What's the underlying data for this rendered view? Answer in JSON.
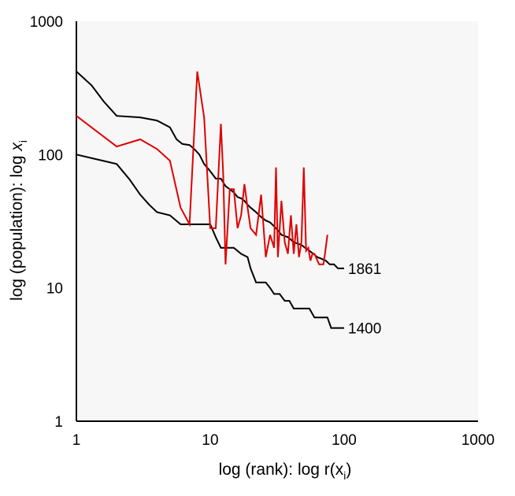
{
  "chart_data": {
    "type": "line",
    "xscale": "log",
    "yscale": "log",
    "xlim": [
      1,
      1000
    ],
    "ylim": [
      1,
      1000
    ],
    "xticks": [
      "1",
      "10",
      "100",
      "1000"
    ],
    "yticks": [
      "1",
      "10",
      "100",
      "1000"
    ],
    "xlabel": "log (rank): log r(x",
    "xlabel_sub": "i",
    "xlabel_close": ")",
    "ylabel": "log (population): log ",
    "ylabel_var": "x",
    "ylabel_sub": "i",
    "grid": false,
    "colors": {
      "plot_bg": "#f7f7f7",
      "axis": "#000000",
      "series_1400": "#000000",
      "series_1861": "#000000",
      "series_mid": "#e00000"
    },
    "series": [
      {
        "name": "1861",
        "color": "#000000",
        "x": [
          1,
          1.3,
          1.6,
          2,
          3,
          4,
          5,
          5.6,
          6.2,
          7,
          7.6,
          8.3,
          9,
          10,
          11,
          12,
          13,
          14,
          15,
          16,
          17,
          18,
          19,
          20,
          22,
          24,
          26,
          28,
          30,
          32,
          34,
          36,
          38,
          40,
          42,
          45,
          48,
          51,
          55,
          59,
          63,
          68,
          73,
          78,
          84,
          90,
          100
        ],
        "y": [
          420,
          330,
          250,
          195,
          190,
          180,
          160,
          130,
          120,
          118,
          110,
          100,
          85,
          75,
          66,
          66,
          58,
          55,
          52,
          48,
          47,
          45,
          42,
          40,
          37,
          34,
          32,
          31,
          29,
          27,
          25,
          24.5,
          24,
          23,
          22,
          21.5,
          21,
          20,
          19,
          18,
          17,
          16.5,
          16,
          15,
          15,
          14,
          14
        ]
      },
      {
        "name": "1400",
        "color": "#000000",
        "x": [
          1,
          2,
          2.5,
          3,
          3.5,
          4,
          5,
          6,
          7,
          8,
          9,
          10,
          11,
          12,
          13,
          15,
          17,
          19,
          20,
          22,
          24,
          26,
          28,
          30,
          33,
          36,
          39,
          42,
          45,
          50,
          55,
          60,
          65,
          70,
          75,
          80,
          90,
          100
        ],
        "y": [
          100,
          85,
          65,
          50,
          42,
          37,
          35,
          30,
          30,
          30,
          30,
          30,
          24,
          20,
          20,
          20,
          18,
          17,
          14,
          11,
          11,
          11,
          10,
          9,
          9,
          8,
          8,
          7,
          7,
          7,
          7,
          6,
          6,
          6,
          6,
          5,
          5,
          5
        ]
      },
      {
        "name": "",
        "color": "#e00000",
        "x": [
          1,
          2,
          3,
          4,
          5,
          6,
          7,
          8,
          9,
          10,
          11,
          12,
          12.5,
          13,
          14,
          15,
          16,
          17,
          18,
          19,
          20,
          22,
          24,
          26,
          28,
          30,
          31,
          32,
          34,
          36,
          38,
          40,
          42,
          44,
          46,
          48,
          50,
          52,
          54,
          56,
          58,
          60,
          65,
          70,
          72,
          75
        ],
        "y": [
          195,
          115,
          130,
          110,
          90,
          40,
          30,
          420,
          190,
          28,
          28,
          170,
          70,
          15,
          55,
          55,
          28,
          35,
          60,
          40,
          28,
          25,
          50,
          17,
          25,
          20,
          80,
          17,
          45,
          22,
          18,
          35,
          18,
          30,
          17,
          22,
          80,
          19,
          20,
          16,
          18,
          18,
          15,
          15,
          18,
          25
        ]
      }
    ]
  }
}
